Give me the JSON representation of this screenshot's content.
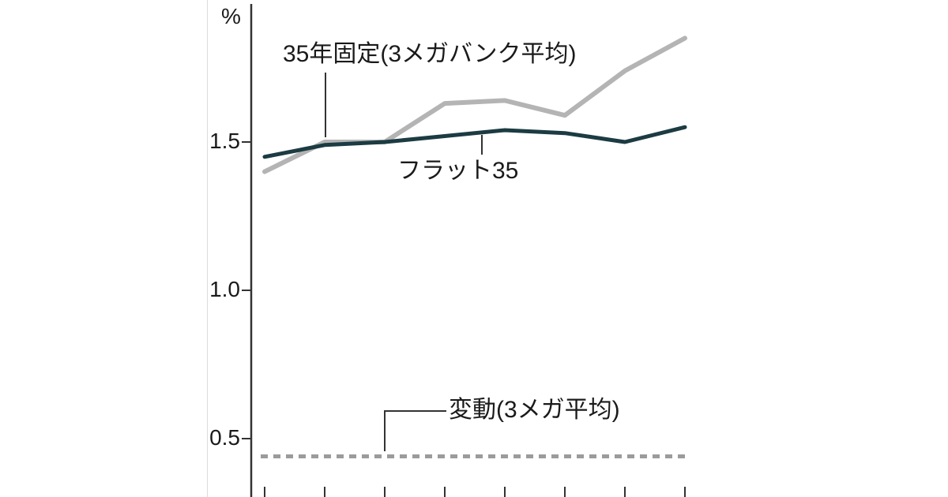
{
  "chart_data": {
    "type": "line",
    "unit_label": "%",
    "y_ticks": [
      {
        "label": "1.5",
        "value": 1.5
      },
      {
        "label": "1.0",
        "value": 1.0
      },
      {
        "label": "0.5",
        "value": 0.5
      }
    ],
    "ylim": [
      0.35,
      1.95
    ],
    "grid": false,
    "legend_position": "annotations-on-chart",
    "x_note": "8 evenly spaced time points; x-axis labels cropped out of the screenshot",
    "series": [
      {
        "name": "35年固定(3メガバンク平均)",
        "color": "#b4b4b4",
        "style": "solid",
        "values": [
          1.4,
          1.5,
          1.5,
          1.63,
          1.64,
          1.59,
          1.74,
          1.85
        ]
      },
      {
        "name": "フラット35",
        "color": "#1c3b42",
        "style": "solid",
        "values": [
          1.45,
          1.49,
          1.5,
          1.52,
          1.54,
          1.53,
          1.5,
          1.55
        ]
      },
      {
        "name": "変動(3メガ平均)",
        "color": "#9b9b9b",
        "style": "dashed",
        "values": [
          0.44,
          0.44,
          0.44,
          0.44,
          0.44,
          0.44,
          0.44,
          0.44
        ]
      }
    ],
    "annotations": [
      {
        "text": "35年固定(3メガバンク平均)",
        "points_to_series": "35年固定(3メガバンク平均)"
      },
      {
        "text": "フラット35",
        "points_to_series": "フラット35"
      },
      {
        "text": "変動(3メガ平均)",
        "points_to_series": "変動(3メガ平均)"
      }
    ]
  },
  "labels": {
    "unit": "%",
    "tick_15": "1.5",
    "tick_10": "1.0",
    "tick_05": "0.5",
    "fixed35": "35年固定(3メガバンク平均)",
    "flat35": "フラット35",
    "variable": "変動(3メガ平均)"
  },
  "colors": {
    "axis": "#333333",
    "leader": "#333333",
    "fixed_line": "#b4b4b4",
    "flat_line": "#1c3b42",
    "variable_line": "#9b9b9b",
    "divider": "#dcdcdc"
  }
}
